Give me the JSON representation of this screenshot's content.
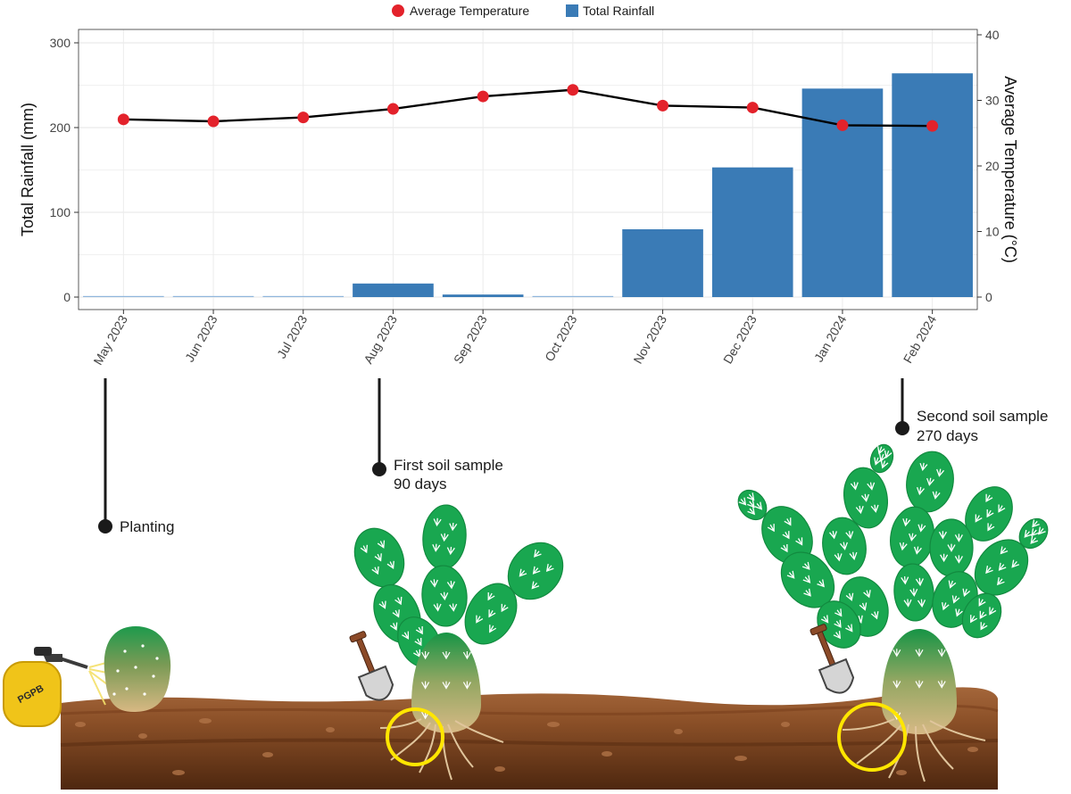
{
  "legend": {
    "temperature_label": "Average Temperature",
    "rainfall_label": "Total Rainfall"
  },
  "colors": {
    "rainfall_bar": "#3a7bb6",
    "rainfall_bar_light": "#8fb6dc",
    "temperature_point": "#e3222b",
    "temperature_line": "#000000",
    "soil_top": "#9a5a30",
    "soil_bottom": "#5a2f15",
    "cactus_green": "#19a750",
    "cactus_base": "#d8b883",
    "sample_circle": "#ffe600",
    "sprayer": "#f0c419"
  },
  "chart_data": {
    "type": "bar",
    "categories": [
      "May 2023",
      "Jun 2023",
      "Jul 2023",
      "Aug 2023",
      "Sep 2023",
      "Oct 2023",
      "Nov 2023",
      "Dec 2023",
      "Jan 2024",
      "Feb 2024"
    ],
    "series": [
      {
        "name": "Total Rainfall",
        "type": "bar",
        "axis": "left",
        "values": [
          0,
          0,
          0,
          16,
          3,
          0,
          80,
          153,
          246,
          264
        ]
      },
      {
        "name": "Average Temperature",
        "type": "line",
        "axis": "right",
        "values": [
          27.1,
          26.8,
          27.4,
          28.7,
          30.6,
          31.6,
          29.2,
          28.9,
          26.2,
          26.1
        ]
      }
    ],
    "ylabel": "Total Rainfall (mm)",
    "ylim": [
      0,
      310
    ],
    "yticks": [
      "0",
      "100",
      "200",
      "300"
    ],
    "y2label": "Average Temperature (°C)",
    "y2lim": [
      0,
      40.3
    ],
    "y2ticks": [
      "0",
      "10",
      "20",
      "30",
      "40"
    ],
    "grid": true,
    "legend_position": "top"
  },
  "timeline": {
    "planting": "Planting",
    "first_sample_title": "First soil sample",
    "first_sample_days": "90 days",
    "second_sample_title": "Second soil sample",
    "second_sample_days": "270 days"
  },
  "illustration": {
    "sprayer_label": "PGPB"
  }
}
